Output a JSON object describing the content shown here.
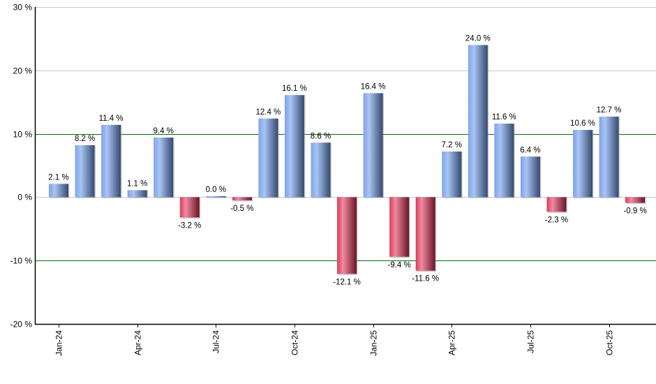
{
  "chart_data": {
    "type": "bar",
    "title": "",
    "xlabel": "",
    "ylabel": "",
    "ylim": [
      -20,
      30
    ],
    "yticks": [
      30,
      20,
      10,
      0,
      -10,
      -20
    ],
    "ytick_labels": [
      "30 %",
      "20 %",
      "10 %",
      "0 %",
      "-10 %",
      "-20 %"
    ],
    "xtick_labels": [
      "Jan-24",
      "Apr-24",
      "Jul-24",
      "Oct-24",
      "Jan-25",
      "Apr-25",
      "Jul-25",
      "Oct-25"
    ],
    "categories": [
      "Jan-24",
      "Feb-24",
      "Mar-24",
      "Apr-24",
      "May-24",
      "Jun-24",
      "Jul-24",
      "Aug-24",
      "Sep-24",
      "Oct-24",
      "Nov-24",
      "Dec-24",
      "Jan-25",
      "Feb-25",
      "Mar-25",
      "Apr-25",
      "May-25",
      "Jun-25",
      "Jul-25",
      "Aug-25",
      "Sep-25",
      "Oct-25",
      "Nov-25"
    ],
    "values": [
      2.1,
      8.2,
      11.4,
      1.1,
      9.4,
      -3.2,
      0.0,
      -0.5,
      12.4,
      16.1,
      8.6,
      -12.1,
      16.4,
      -9.4,
      -11.6,
      7.2,
      24.0,
      11.6,
      6.4,
      -2.3,
      10.6,
      12.7,
      -0.9
    ],
    "value_labels": [
      "2.1 %",
      "8.2 %",
      "11.4 %",
      "1.1 %",
      "9.4 %",
      "-3.2 %",
      "0.0 %",
      "-0.5 %",
      "12.4 %",
      "16.1 %",
      "8.6 %",
      "-12.1 %",
      "16.4 %",
      "-9.4 %",
      "-11.6 %",
      "7.2 %",
      "24.0 %",
      "11.6 %",
      "6.4 %",
      "-2.3 %",
      "10.6 %",
      "12.7 %",
      "-0.9 %"
    ],
    "reference_lines": [
      10,
      -10
    ],
    "grid": true,
    "legend": null
  },
  "colors": {
    "positive_light": "#a9c4f5",
    "positive_mid": "#7fa3e8",
    "positive_dark": "#34496e",
    "negative_light": "#f08aa0",
    "negative_mid": "#dc3a5a",
    "negative_dark": "#6a1428",
    "grid": "#c8c8c8",
    "reference_line": "#007000",
    "axis": "#000000"
  }
}
